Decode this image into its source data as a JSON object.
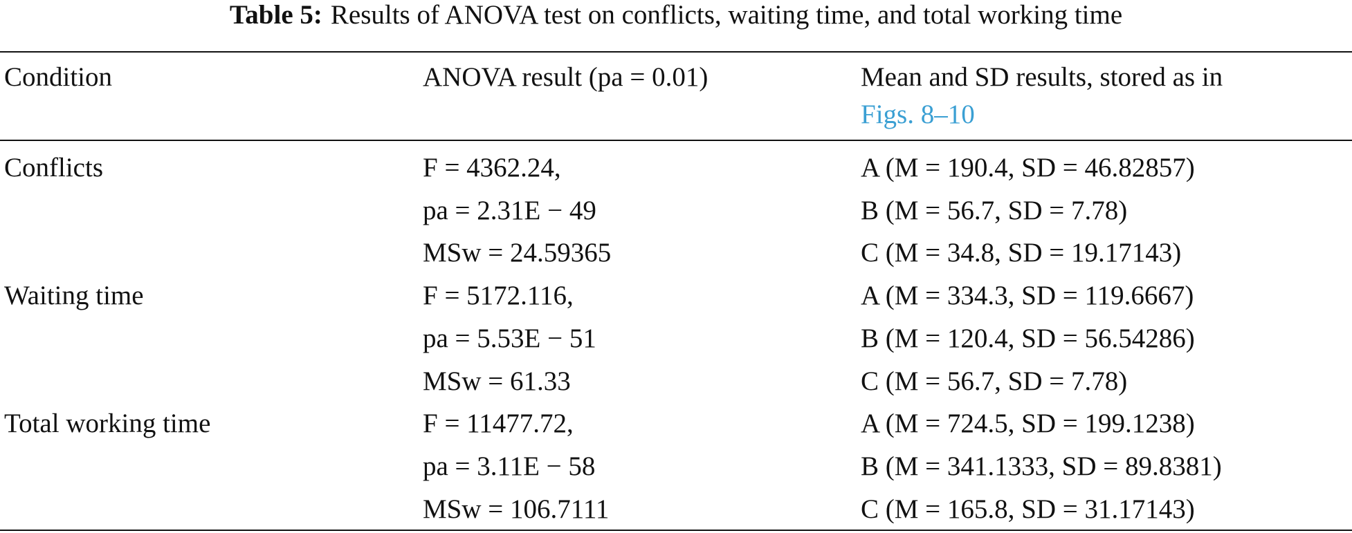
{
  "caption": {
    "label": "Table 5:",
    "text": "Results of ANOVA test on conflicts, waiting time, and total working time"
  },
  "table": {
    "header": [
      "Condition",
      "ANOVA result (pa = 0.01)",
      {
        "text": "Mean and SD results, stored as in",
        "link": "Figs. 8–10"
      }
    ],
    "rows": [
      [
        "Conflicts",
        [
          "F = 4362.24,",
          "pa = 2.31E − 49",
          "MSw = 24.59365"
        ],
        [
          "A (M = 190.4, SD = 46.82857)",
          "B (M = 56.7, SD = 7.78)",
          "C (M = 34.8, SD = 19.17143)"
        ]
      ],
      [
        "Waiting time",
        [
          "F = 5172.116,",
          "pa = 5.53E − 51",
          "MSw = 61.33"
        ],
        [
          "A (M = 334.3, SD = 119.6667)",
          "B (M = 120.4, SD = 56.54286)",
          "C (M = 56.7, SD = 7.78)"
        ]
      ],
      [
        "Total working time",
        [
          "F = 11477.72,",
          "pa = 3.11E − 58",
          "MSw = 106.7111"
        ],
        [
          "A (M = 724.5, SD = 199.1238)",
          "B (M = 341.1333, SD = 89.8381)",
          "C (M = 165.8, SD = 31.17143)"
        ]
      ]
    ]
  }
}
